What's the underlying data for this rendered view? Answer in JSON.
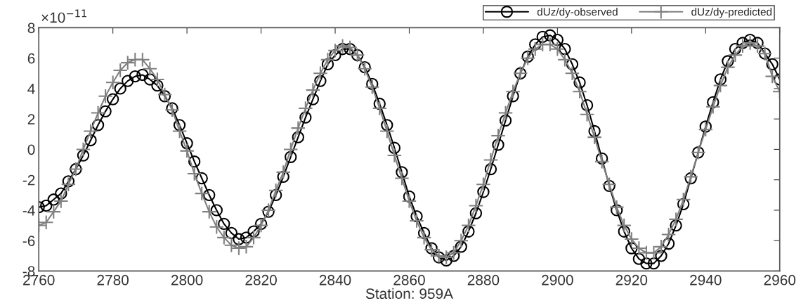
{
  "chart_data": {
    "type": "line",
    "xlabel": "Station: 959A",
    "annotations": [
      "×10$^{−11}$"
    ],
    "x": [
      2760,
      2762,
      2764,
      2766,
      2768,
      2770,
      2772,
      2774,
      2776,
      2778,
      2780,
      2782,
      2784,
      2786,
      2788,
      2790,
      2792,
      2794,
      2796,
      2798,
      2800,
      2802,
      2804,
      2806,
      2808,
      2810,
      2812,
      2814,
      2816,
      2818,
      2820,
      2822,
      2824,
      2826,
      2828,
      2830,
      2832,
      2834,
      2836,
      2838,
      2840,
      2842,
      2844,
      2846,
      2848,
      2850,
      2852,
      2854,
      2856,
      2858,
      2860,
      2862,
      2864,
      2866,
      2868,
      2870,
      2872,
      2874,
      2876,
      2878,
      2880,
      2882,
      2884,
      2886,
      2888,
      2890,
      2892,
      2894,
      2896,
      2898,
      2900,
      2902,
      2904,
      2906,
      2908,
      2910,
      2912,
      2914,
      2916,
      2918,
      2920,
      2922,
      2924,
      2926,
      2928,
      2930,
      2932,
      2934,
      2936,
      2938,
      2940,
      2942,
      2944,
      2946,
      2948,
      2950,
      2952,
      2954,
      2956,
      2958,
      2960
    ],
    "series": [
      {
        "name": "dUz/dy-observed",
        "color": "#000000",
        "marker": "circle",
        "values": [
          -3.8,
          -3.7,
          -3.3,
          -2.9,
          -2.1,
          -1.3,
          -0.4,
          0.6,
          1.6,
          2.5,
          3.3,
          4.0,
          4.5,
          4.8,
          4.9,
          4.6,
          4.2,
          3.5,
          2.7,
          1.6,
          0.4,
          -0.8,
          -1.9,
          -3.0,
          -4.0,
          -4.9,
          -5.5,
          -5.9,
          -5.8,
          -5.4,
          -4.9,
          -4.1,
          -3.0,
          -1.8,
          -0.5,
          0.8,
          2.1,
          3.3,
          4.5,
          5.6,
          6.2,
          6.6,
          6.6,
          6.2,
          5.4,
          4.3,
          3.0,
          1.6,
          0.1,
          -1.5,
          -3.1,
          -4.4,
          -5.5,
          -6.5,
          -7.1,
          -7.3,
          -7.0,
          -6.4,
          -5.4,
          -4.2,
          -2.8,
          -1.3,
          0.3,
          1.9,
          3.5,
          5.0,
          6.1,
          6.9,
          7.4,
          7.5,
          7.2,
          6.6,
          5.6,
          4.4,
          2.9,
          1.2,
          -0.6,
          -2.4,
          -4.0,
          -5.4,
          -6.5,
          -7.2,
          -7.5,
          -7.5,
          -7.0,
          -6.2,
          -5.0,
          -3.6,
          -1.9,
          -0.2,
          1.5,
          3.1,
          4.6,
          5.8,
          6.6,
          7.0,
          7.2,
          7.0,
          6.3,
          5.6,
          4.6
        ]
      },
      {
        "name": "dUz/dy-predicted",
        "color": "#808080",
        "marker": "cross",
        "values": [
          -5.0,
          -4.8,
          -4.1,
          -3.4,
          -2.3,
          -1.3,
          0.0,
          1.2,
          2.4,
          3.5,
          4.4,
          5.2,
          5.7,
          5.9,
          5.9,
          5.3,
          4.6,
          3.6,
          2.6,
          1.2,
          -0.1,
          -1.6,
          -2.9,
          -4.1,
          -5.1,
          -5.8,
          -6.3,
          -6.5,
          -6.4,
          -5.8,
          -5.0,
          -4.0,
          -2.7,
          -1.5,
          0.0,
          1.4,
          2.7,
          3.9,
          5.0,
          5.9,
          6.5,
          6.8,
          6.7,
          6.2,
          5.3,
          4.1,
          2.7,
          1.2,
          -0.4,
          -1.9,
          -3.4,
          -4.7,
          -5.8,
          -6.6,
          -7.0,
          -7.1,
          -6.8,
          -6.0,
          -5.0,
          -3.7,
          -2.3,
          -0.7,
          0.9,
          2.4,
          3.8,
          5.0,
          6.0,
          6.6,
          6.9,
          6.9,
          6.6,
          5.9,
          5.0,
          3.8,
          2.3,
          0.8,
          -0.8,
          -2.3,
          -3.8,
          -5.0,
          -5.9,
          -6.5,
          -6.8,
          -6.8,
          -6.4,
          -5.6,
          -4.6,
          -3.3,
          -1.8,
          -0.2,
          1.3,
          2.8,
          4.2,
          5.4,
          6.2,
          6.8,
          7.0,
          6.8,
          6.3,
          4.8,
          3.8
        ]
      }
    ],
    "xlim": [
      2760,
      2960
    ],
    "xticks": [
      2760,
      2780,
      2800,
      2820,
      2840,
      2860,
      2880,
      2900,
      2920,
      2940,
      2960
    ],
    "ylim": [
      -8,
      8
    ],
    "yticks": [
      -8,
      -6,
      -4,
      -2,
      0,
      2,
      4,
      6,
      8
    ],
    "legend": "top right",
    "line_style": "solid"
  }
}
